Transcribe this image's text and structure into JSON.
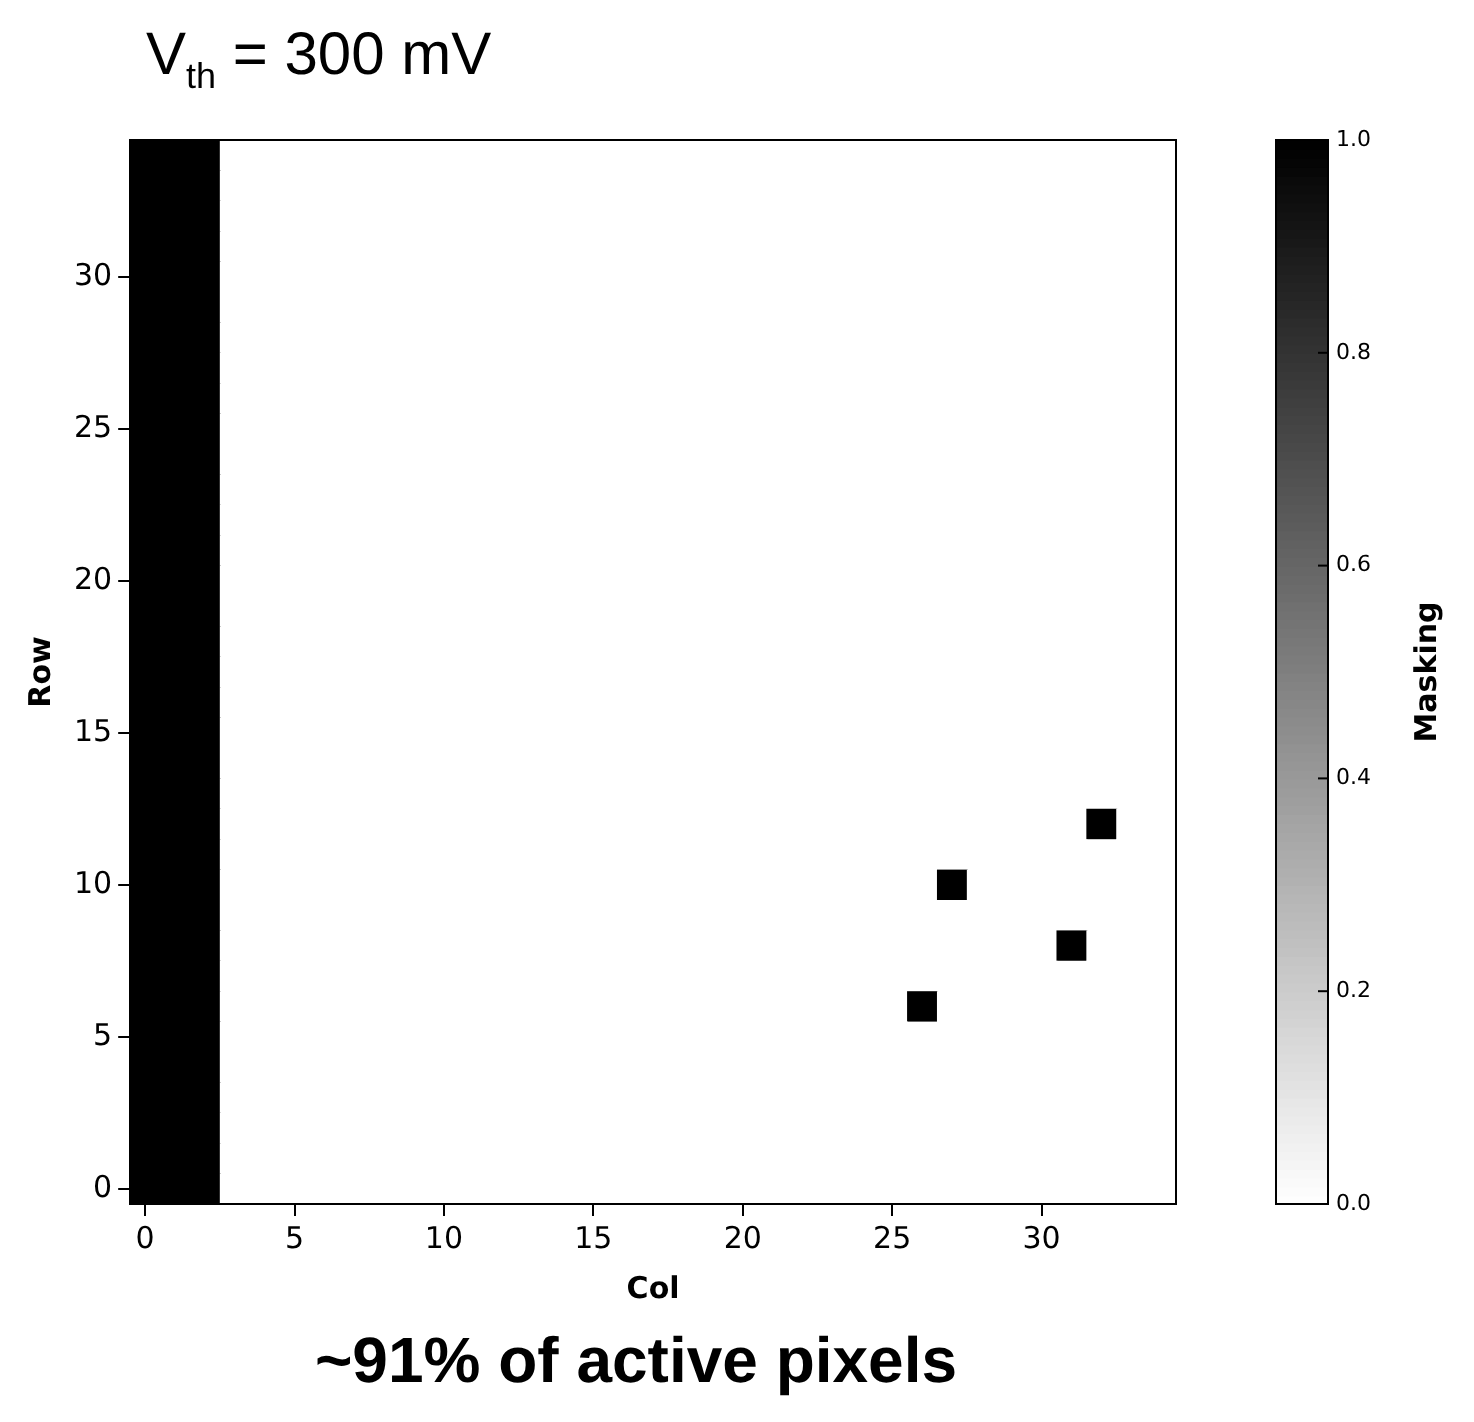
{
  "chart_data": {
    "type": "heatmap",
    "title": "V$_{th}$ = 300 mV",
    "xlabel": "Col",
    "ylabel": "Row",
    "clabel": "Masking",
    "annotations": [
      "~91% of active pixels"
    ],
    "categories": [
      "0",
      null,
      null,
      null,
      null,
      "5",
      null,
      null,
      null,
      null,
      "10",
      null,
      null,
      null,
      null,
      "15",
      null,
      null,
      null,
      null,
      "20",
      null,
      null,
      null,
      null,
      "25",
      null,
      null,
      null,
      null,
      "30",
      null,
      null,
      null,
      null
    ],
    "y_categories": [
      null,
      null,
      null,
      null,
      "30",
      null,
      null,
      null,
      null,
      "25",
      null,
      null,
      null,
      null,
      "20",
      null,
      null,
      null,
      null,
      "15",
      null,
      null,
      null,
      null,
      "10",
      null,
      null,
      null,
      null,
      "5",
      null,
      null,
      null,
      null,
      "0"
    ],
    "cells": [
      [
        1,
        1,
        1,
        0,
        0,
        0,
        0,
        0,
        0,
        0,
        0,
        0,
        0,
        0,
        0,
        0,
        0,
        0,
        0,
        0,
        0,
        0,
        0,
        0,
        0,
        0,
        0,
        0,
        0,
        0,
        0,
        0,
        0,
        0,
        0
      ],
      [
        1,
        1,
        1,
        0,
        0,
        0,
        0,
        0,
        0,
        0,
        0,
        0,
        0,
        0,
        0,
        0,
        0,
        0,
        0,
        0,
        0,
        0,
        0,
        0,
        0,
        0,
        0,
        0,
        0,
        0,
        0,
        0,
        0,
        0,
        0
      ],
      [
        1,
        1,
        1,
        0,
        0,
        0,
        0,
        0,
        0,
        0,
        0,
        0,
        0,
        0,
        0,
        0,
        0,
        0,
        0,
        0,
        0,
        0,
        0,
        0,
        0,
        0,
        0,
        0,
        0,
        0,
        0,
        0,
        0,
        0,
        0
      ],
      [
        1,
        1,
        1,
        0,
        0,
        0,
        0,
        0,
        0,
        0,
        0,
        0,
        0,
        0,
        0,
        0,
        0,
        0,
        0,
        0,
        0,
        0,
        0,
        0,
        0,
        0,
        0,
        0,
        0,
        0,
        0,
        0,
        0,
        0,
        0
      ],
      [
        1,
        1,
        1,
        0,
        0,
        0,
        0,
        0,
        0,
        0,
        0,
        0,
        0,
        0,
        0,
        0,
        0,
        0,
        0,
        0,
        0,
        0,
        0,
        0,
        0,
        0,
        0,
        0,
        0,
        0,
        0,
        0,
        0,
        0,
        0
      ],
      [
        1,
        1,
        1,
        0,
        0,
        0,
        0,
        0,
        0,
        0,
        0,
        0,
        0,
        0,
        0,
        0,
        0,
        0,
        0,
        0,
        0,
        0,
        0,
        0,
        0,
        0,
        0,
        0,
        0,
        0,
        0,
        0,
        0,
        0,
        0
      ],
      [
        1,
        1,
        1,
        0,
        0,
        0,
        0,
        0,
        0,
        0,
        0,
        0,
        0,
        0,
        0,
        0,
        0,
        0,
        0,
        0,
        0,
        0,
        0,
        0,
        0,
        0,
        0,
        0,
        0,
        0,
        0,
        0,
        0,
        0,
        0
      ],
      [
        1,
        1,
        1,
        0,
        0,
        0,
        0,
        0,
        0,
        0,
        0,
        0,
        0,
        0,
        0,
        0,
        0,
        0,
        0,
        0,
        0,
        0,
        0,
        0,
        0,
        0,
        0,
        0,
        0,
        0,
        0,
        0,
        0,
        0,
        0
      ],
      [
        1,
        1,
        1,
        0,
        0,
        0,
        0,
        0,
        0,
        0,
        0,
        0,
        0,
        0,
        0,
        0,
        0,
        0,
        0,
        0,
        0,
        0,
        0,
        0,
        0,
        0,
        0,
        0,
        0,
        0,
        0,
        0,
        0,
        0,
        0
      ],
      [
        1,
        1,
        1,
        0,
        0,
        0,
        0,
        0,
        0,
        0,
        0,
        0,
        0,
        0,
        0,
        0,
        0,
        0,
        0,
        0,
        0,
        0,
        0,
        0,
        0,
        0,
        0,
        0,
        0,
        0,
        0,
        0,
        0,
        0,
        0
      ],
      [
        1,
        1,
        1,
        0,
        0,
        0,
        0,
        0,
        0,
        0,
        0,
        0,
        0,
        0,
        0,
        0,
        0,
        0,
        0,
        0,
        0,
        0,
        0,
        0,
        0,
        0,
        0,
        0,
        0,
        0,
        0,
        0,
        0,
        0,
        0
      ],
      [
        1,
        1,
        1,
        0,
        0,
        0,
        0,
        0,
        0,
        0,
        0,
        0,
        0,
        0,
        0,
        0,
        0,
        0,
        0,
        0,
        0,
        0,
        0,
        0,
        0,
        0,
        0,
        0,
        0,
        0,
        0,
        0,
        0,
        0,
        0
      ],
      [
        1,
        1,
        1,
        0,
        0,
        0,
        0,
        0,
        0,
        0,
        0,
        0,
        0,
        0,
        0,
        0,
        0,
        0,
        0,
        0,
        0,
        0,
        0,
        0,
        0,
        0,
        0,
        0,
        0,
        0,
        0,
        0,
        0,
        0,
        0
      ],
      [
        1,
        1,
        1,
        0,
        0,
        0,
        0,
        0,
        0,
        0,
        0,
        0,
        0,
        0,
        0,
        0,
        0,
        0,
        0,
        0,
        0,
        0,
        0,
        0,
        0,
        0,
        0,
        0,
        0,
        0,
        0,
        0,
        0,
        0,
        0
      ],
      [
        1,
        1,
        1,
        0,
        0,
        0,
        0,
        0,
        0,
        0,
        0,
        0,
        0,
        0,
        0,
        0,
        0,
        0,
        0,
        0,
        0,
        0,
        0,
        0,
        0,
        0,
        0,
        0,
        0,
        0,
        0,
        0,
        0,
        0,
        0
      ],
      [
        1,
        1,
        1,
        0,
        0,
        0,
        0,
        0,
        0,
        0,
        0,
        0,
        0,
        0,
        0,
        0,
        0,
        0,
        0,
        0,
        0,
        0,
        0,
        0,
        0,
        0,
        0,
        0,
        0,
        0,
        0,
        0,
        0,
        0,
        0
      ],
      [
        1,
        1,
        1,
        0,
        0,
        0,
        0,
        0,
        0,
        0,
        0,
        0,
        0,
        0,
        0,
        0,
        0,
        0,
        0,
        0,
        0,
        0,
        0,
        0,
        0,
        0,
        0,
        0,
        0,
        0,
        0,
        0,
        0,
        0,
        0
      ],
      [
        1,
        1,
        1,
        0,
        0,
        0,
        0,
        0,
        0,
        0,
        0,
        0,
        0,
        0,
        0,
        0,
        0,
        0,
        0,
        0,
        0,
        0,
        0,
        0,
        0,
        0,
        0,
        0,
        0,
        0,
        0,
        0,
        0,
        0,
        0
      ],
      [
        1,
        1,
        1,
        0,
        0,
        0,
        0,
        0,
        0,
        0,
        0,
        0,
        0,
        0,
        0,
        0,
        0,
        0,
        0,
        0,
        0,
        0,
        0,
        0,
        0,
        0,
        0,
        0,
        0,
        0,
        0,
        0,
        0,
        0,
        0
      ],
      [
        1,
        1,
        1,
        0,
        0,
        0,
        0,
        0,
        0,
        0,
        0,
        0,
        0,
        0,
        0,
        0,
        0,
        0,
        0,
        0,
        0,
        0,
        0,
        0,
        0,
        0,
        0,
        0,
        0,
        0,
        0,
        0,
        0,
        0,
        0
      ],
      [
        1,
        1,
        1,
        0,
        0,
        0,
        0,
        0,
        0,
        0,
        0,
        0,
        0,
        0,
        0,
        0,
        0,
        0,
        0,
        0,
        0,
        0,
        0,
        0,
        0,
        0,
        0,
        0,
        0,
        0,
        0,
        0,
        0,
        0,
        0
      ],
      [
        1,
        1,
        1,
        0,
        0,
        0,
        0,
        0,
        0,
        0,
        0,
        0,
        0,
        0,
        0,
        0,
        0,
        0,
        0,
        0,
        0,
        0,
        0,
        0,
        0,
        0,
        0,
        0,
        0,
        0,
        0,
        0,
        0,
        0,
        0
      ],
      [
        1,
        1,
        1,
        0,
        0,
        0,
        0,
        0,
        0,
        0,
        0,
        0,
        0,
        0,
        0,
        0,
        0,
        0,
        0,
        0,
        0,
        0,
        0,
        0,
        0,
        0,
        0,
        0,
        0,
        0,
        0,
        0,
        1,
        0,
        0
      ],
      [
        1,
        1,
        1,
        0,
        0,
        0,
        0,
        0,
        0,
        0,
        0,
        0,
        0,
        0,
        0,
        0,
        0,
        0,
        0,
        0,
        0,
        0,
        0,
        0,
        0,
        0,
        0,
        0,
        0,
        0,
        0,
        0,
        0,
        0,
        0
      ],
      [
        1,
        1,
        1,
        0,
        0,
        0,
        0,
        0,
        0,
        0,
        0,
        0,
        0,
        0,
        0,
        0,
        0,
        0,
        0,
        0,
        0,
        0,
        0,
        0,
        0,
        0,
        0,
        1,
        0,
        0,
        0,
        0,
        0,
        0,
        0
      ],
      [
        1,
        1,
        1,
        0,
        0,
        0,
        0,
        0,
        0,
        0,
        0,
        0,
        0,
        0,
        0,
        0,
        0,
        0,
        0,
        0,
        0,
        0,
        0,
        0,
        0,
        0,
        0,
        0,
        0,
        0,
        0,
        0,
        0,
        0,
        0
      ],
      [
        1,
        1,
        1,
        0,
        0,
        0,
        0,
        0,
        0,
        0,
        0,
        0,
        0,
        0,
        0,
        0,
        0,
        0,
        0,
        0,
        0,
        0,
        0,
        0,
        0,
        0,
        0,
        0,
        0,
        0,
        0,
        1,
        0,
        0,
        0
      ],
      [
        1,
        1,
        1,
        0,
        0,
        0,
        0,
        0,
        0,
        0,
        0,
        0,
        0,
        0,
        0,
        0,
        0,
        0,
        0,
        0,
        0,
        0,
        0,
        0,
        0,
        0,
        0,
        0,
        0,
        0,
        0,
        0,
        0,
        0,
        0
      ],
      [
        1,
        1,
        1,
        0,
        0,
        0,
        0,
        0,
        0,
        0,
        0,
        0,
        0,
        0,
        0,
        0,
        0,
        0,
        0,
        0,
        0,
        0,
        0,
        0,
        0,
        0,
        1,
        0,
        0,
        0,
        0,
        0,
        0,
        0,
        0
      ],
      [
        1,
        1,
        1,
        0,
        0,
        0,
        0,
        0,
        0,
        0,
        0,
        0,
        0,
        0,
        0,
        0,
        0,
        0,
        0,
        0,
        0,
        0,
        0,
        0,
        0,
        0,
        0,
        0,
        0,
        0,
        0,
        0,
        0,
        0,
        0
      ],
      [
        1,
        1,
        1,
        0,
        0,
        0,
        0,
        0,
        0,
        0,
        0,
        0,
        0,
        0,
        0,
        0,
        0,
        0,
        0,
        0,
        0,
        0,
        0,
        0,
        0,
        0,
        0,
        0,
        0,
        0,
        0,
        0,
        0,
        0,
        0
      ],
      [
        1,
        1,
        1,
        0,
        0,
        0,
        0,
        0,
        0,
        0,
        0,
        0,
        0,
        0,
        0,
        0,
        0,
        0,
        0,
        0,
        0,
        0,
        0,
        0,
        0,
        0,
        0,
        0,
        0,
        0,
        0,
        0,
        0,
        0,
        0
      ],
      [
        1,
        1,
        1,
        0,
        0,
        0,
        0,
        0,
        0,
        0,
        0,
        0,
        0,
        0,
        0,
        0,
        0,
        0,
        0,
        0,
        0,
        0,
        0,
        0,
        0,
        0,
        0,
        0,
        0,
        0,
        0,
        0,
        0,
        0,
        0
      ],
      [
        1,
        1,
        1,
        0,
        0,
        0,
        0,
        0,
        0,
        0,
        0,
        0,
        0,
        0,
        0,
        0,
        0,
        0,
        0,
        0,
        0,
        0,
        0,
        0,
        0,
        0,
        0,
        0,
        0,
        0,
        0,
        0,
        0,
        0,
        0
      ],
      [
        1,
        1,
        1,
        0,
        0,
        0,
        0,
        0,
        0,
        0,
        0,
        0,
        0,
        0,
        0,
        0,
        0,
        0,
        0,
        0,
        0,
        0,
        0,
        0,
        0,
        0,
        0,
        0,
        0,
        0,
        0,
        0,
        0,
        0,
        0
      ]
    ],
    "clim": [
      0,
      1
    ],
    "cticks": [
      {
        "value": 0,
        "label": "0.0"
      },
      {
        "value": 0.2,
        "label": "0.2"
      },
      {
        "value": 0.4,
        "label": "0.4"
      },
      {
        "value": 0.6,
        "label": "0.6"
      },
      {
        "value": 0.8,
        "label": "0.8"
      },
      {
        "value": 1,
        "label": "1.0"
      }
    ]
  }
}
